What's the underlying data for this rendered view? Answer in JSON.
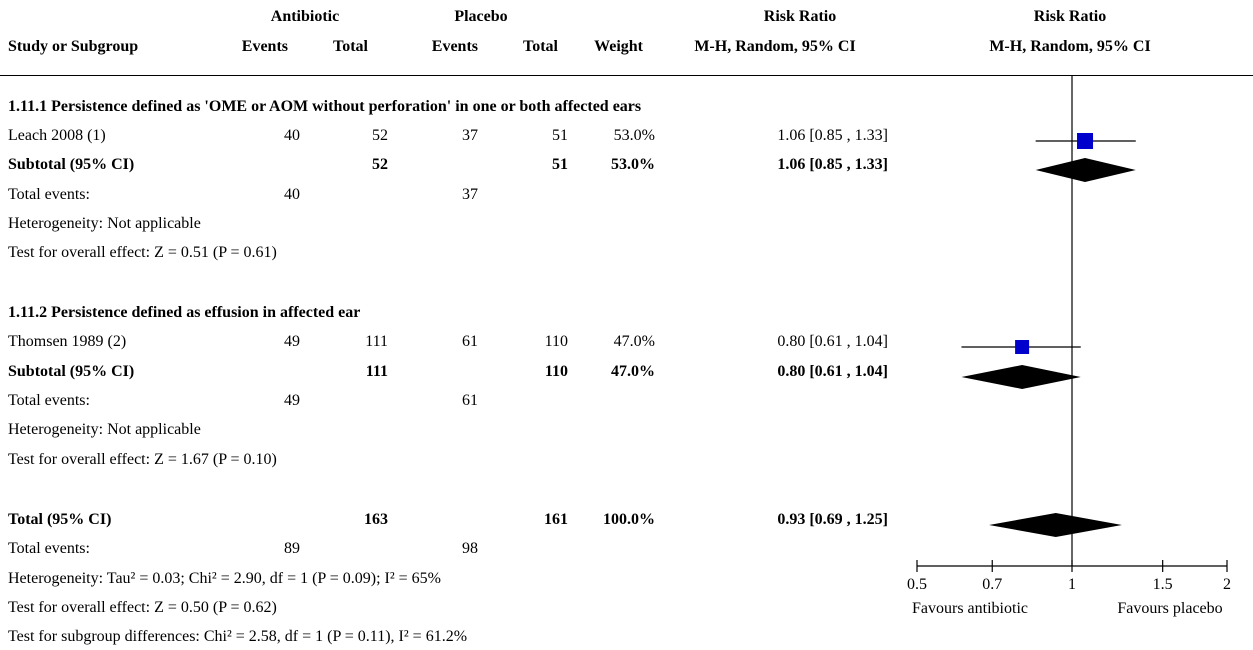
{
  "header": {
    "study_col": "Study or Subgroup",
    "group1": "Antibiotic",
    "group2": "Placebo",
    "events": "Events",
    "total": "Total",
    "weight": "Weight",
    "rr_title": "Risk Ratio",
    "rr_method": "M-H, Random, 95% CI",
    "plot_title": "Risk Ratio",
    "plot_method": "M-H, Random, 95% CI"
  },
  "subgroups": [
    {
      "title": "1.11.1 Persistence defined as 'OME or AOM without perforation' in one or both affected ears",
      "study": {
        "name": "Leach 2008 (1)",
        "e1": "40",
        "n1": "52",
        "e2": "37",
        "n2": "51",
        "weight": "53.0%",
        "ci": "1.06 [0.85 , 1.33]"
      },
      "subtotal": {
        "label": "Subtotal (95% CI)",
        "n1": "52",
        "n2": "51",
        "weight": "53.0%",
        "ci": "1.06 [0.85 , 1.33]"
      },
      "events": {
        "label": "Total events:",
        "e1": "40",
        "e2": "37"
      },
      "heterogeneity": "Heterogeneity: Not applicable",
      "overall": "Test for overall effect: Z = 0.51 (P = 0.61)"
    },
    {
      "title": "1.11.2 Persistence defined as effusion in affected ear",
      "study": {
        "name": "Thomsen 1989 (2)",
        "e1": "49",
        "n1": "111",
        "e2": "61",
        "n2": "110",
        "weight": "47.0%",
        "ci": "0.80 [0.61 , 1.04]"
      },
      "subtotal": {
        "label": "Subtotal (95% CI)",
        "n1": "111",
        "n2": "110",
        "weight": "47.0%",
        "ci": "0.80 [0.61 , 1.04]"
      },
      "events": {
        "label": "Total events:",
        "e1": "49",
        "e2": "61"
      },
      "heterogeneity": "Heterogeneity: Not applicable",
      "overall": "Test for overall effect: Z = 1.67 (P = 0.10)"
    }
  ],
  "total": {
    "label": "Total (95% CI)",
    "n1": "163",
    "n2": "161",
    "weight": "100.0%",
    "ci": "0.93 [0.69 , 1.25]",
    "events": {
      "label": "Total events:",
      "e1": "89",
      "e2": "98"
    },
    "heterogeneity": "Heterogeneity: Tau² = 0.03; Chi² = 2.90, df = 1 (P = 0.09); I² = 65%",
    "overall": "Test for overall effect: Z = 0.50 (P = 0.62)",
    "subgroup_diff": "Test for subgroup differences: Chi² = 2.58, df = 1 (P = 0.11), I² = 61.2%"
  },
  "chart_data": {
    "type": "forest",
    "scale": "log",
    "xlim": [
      0.5,
      2
    ],
    "null_value": 1,
    "ticks": [
      0.5,
      0.7,
      1,
      1.5,
      2
    ],
    "tick_labels": [
      "0.5",
      "0.7",
      "1",
      "1.5",
      "2"
    ],
    "favours_left": "Favours antibiotic",
    "favours_right": "Favours placebo",
    "colors": {
      "study_marker": "#0000cc",
      "diamond": "#000000",
      "line": "#000000"
    },
    "studies": [
      {
        "name": "Leach 2008 (1)",
        "rr": 1.06,
        "lo": 0.85,
        "hi": 1.33,
        "weight": 53.0
      },
      {
        "name": "Thomsen 1989 (2)",
        "rr": 0.8,
        "lo": 0.61,
        "hi": 1.04,
        "weight": 47.0
      }
    ],
    "summaries": [
      {
        "name": "Subtotal 1.11.1",
        "rr": 1.06,
        "lo": 0.85,
        "hi": 1.33
      },
      {
        "name": "Subtotal 1.11.2",
        "rr": 0.8,
        "lo": 0.61,
        "hi": 1.04
      },
      {
        "name": "Total",
        "rr": 0.93,
        "lo": 0.69,
        "hi": 1.25
      }
    ]
  }
}
